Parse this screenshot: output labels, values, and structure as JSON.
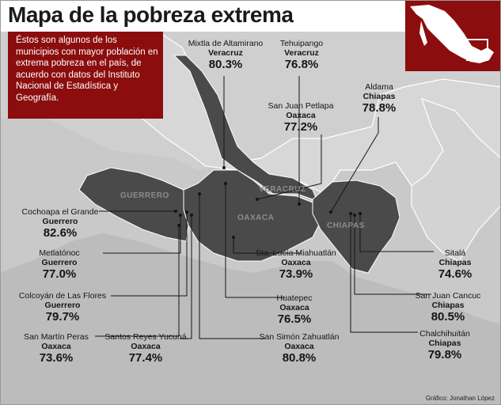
{
  "title": "Mapa de la pobreza extrema",
  "intro": "Éstos son algunos de los municipios con mayor población en extrema pobreza en el país, de acuerdo con datos del Instituto Nacional de Estadística y Geografía.",
  "regions": {
    "guerrero": "GUERRERO",
    "oaxaca": "OAXACA",
    "veracruz": "VERACRUZ",
    "chiapas": "CHIAPAS"
  },
  "municipalities": [
    {
      "name": "Mixtla de Altamirano",
      "state": "Veracruz",
      "percent": "80.3%"
    },
    {
      "name": "Tehuipango",
      "state": "Veracruz",
      "percent": "76.8%"
    },
    {
      "name": "Aldama",
      "state": "Chiapas",
      "percent": "78.8%"
    },
    {
      "name": "San Juan Petlapa",
      "state": "Oaxaca",
      "percent": "77.2%"
    },
    {
      "name": "Cochoapa el Grande",
      "state": "Guerrero",
      "percent": "82.6%"
    },
    {
      "name": "Metlatónoc",
      "state": "Guerrero",
      "percent": "77.0%"
    },
    {
      "name": "Colcoyán de Las Flores",
      "state": "Guerrero",
      "percent": "79.7%"
    },
    {
      "name": "San Martín Peras",
      "state": "Oaxaca",
      "percent": "73.6%"
    },
    {
      "name": "Santos Reyes Yucuná",
      "state": "Oaxaca",
      "percent": "77.4%"
    },
    {
      "name": "San Simón Zahuatlán",
      "state": "Oaxaca",
      "percent": "80.8%"
    },
    {
      "name": "Huatepec",
      "state": "Oaxaca",
      "percent": "76.5%"
    },
    {
      "name": "Sta. Lucía Miahuatlán",
      "state": "Oaxaca",
      "percent": "73.9%"
    },
    {
      "name": "Sitalá",
      "state": "Chiapas",
      "percent": "74.6%"
    },
    {
      "name": "San Juan Cancuc",
      "state": "Chiapas",
      "percent": "80.5%"
    },
    {
      "name": "Chalchihuitán",
      "state": "Chiapas",
      "percent": "79.8%"
    }
  ],
  "credit": "Gráfico: Jonathan López",
  "colors": {
    "accent": "#8b0d0d",
    "highlight": "#454545",
    "background": "#c6c6c6"
  }
}
